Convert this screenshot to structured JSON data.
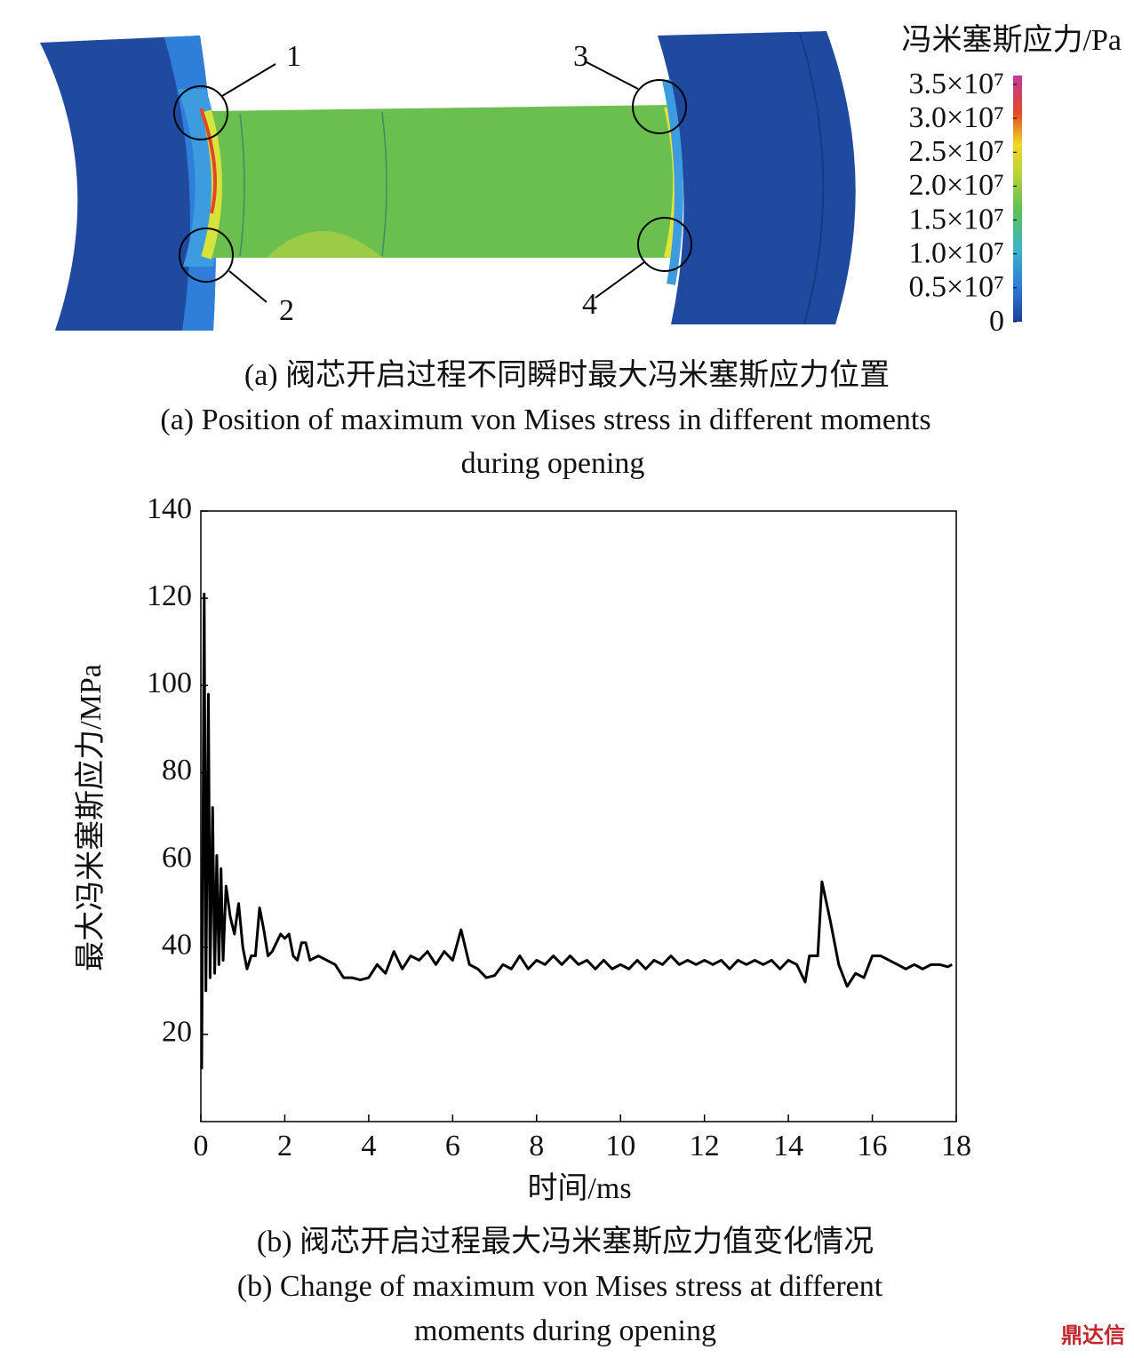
{
  "figure_a": {
    "legend_title": "冯米塞斯应力/Pa",
    "colorbar_ticks": [
      0,
      {
        "value": 5000000,
        "label": "0.5×10⁷"
      },
      {
        "value": 10000000,
        "label": "1.0×10⁷"
      },
      {
        "value": 15000000,
        "label": "1.5×10⁷"
      },
      {
        "value": 20000000,
        "label": "2.0×10⁷"
      },
      {
        "value": 25000000,
        "label": "2.5×10⁷"
      },
      {
        "value": 30000000,
        "label": "3.0×10⁷"
      },
      {
        "value": 35000000,
        "label": "3.5×10⁷"
      }
    ],
    "markers": [
      "1",
      "2",
      "3",
      "4"
    ],
    "caption_cn": "(a) 阀芯开启过程不同瞬时最大冯米塞斯应力位置",
    "caption_en": [
      "(a) Position of maximum von Mises stress in different moments",
      "during opening"
    ]
  },
  "chart_data": {
    "type": "line",
    "x_label": "时间/ms",
    "y_label": "最大冯米塞斯应力/MPa",
    "xlim": [
      0,
      18
    ],
    "xticks": [
      0,
      2,
      4,
      6,
      8,
      10,
      12,
      14,
      16,
      18
    ],
    "ylim": [
      0,
      140
    ],
    "yticks": [
      20,
      40,
      60,
      80,
      100,
      120,
      140
    ],
    "x": [
      0.02,
      0.08,
      0.12,
      0.18,
      0.22,
      0.28,
      0.33,
      0.38,
      0.43,
      0.48,
      0.53,
      0.6,
      0.7,
      0.8,
      0.9,
      1.0,
      1.1,
      1.2,
      1.3,
      1.4,
      1.5,
      1.6,
      1.7,
      1.8,
      1.9,
      2.0,
      2.1,
      2.2,
      2.3,
      2.4,
      2.5,
      2.6,
      2.8,
      3.0,
      3.2,
      3.4,
      3.6,
      3.8,
      4.0,
      4.2,
      4.4,
      4.6,
      4.8,
      5.0,
      5.2,
      5.4,
      5.6,
      5.8,
      6.0,
      6.2,
      6.4,
      6.6,
      6.8,
      7.0,
      7.2,
      7.4,
      7.6,
      7.8,
      8.0,
      8.2,
      8.4,
      8.6,
      8.8,
      9.0,
      9.2,
      9.4,
      9.6,
      9.8,
      10.0,
      10.2,
      10.4,
      10.6,
      10.8,
      11.0,
      11.2,
      11.4,
      11.6,
      11.8,
      12.0,
      12.2,
      12.4,
      12.6,
      12.8,
      13.0,
      13.2,
      13.4,
      13.6,
      13.8,
      14.0,
      14.2,
      14.4,
      14.5,
      14.7,
      14.8,
      15.0,
      15.2,
      15.4,
      15.6,
      15.8,
      16.0,
      16.2,
      16.4,
      16.6,
      16.8,
      17.0,
      17.2,
      17.4,
      17.6,
      17.8,
      17.9
    ],
    "series": [
      {
        "color": "#000000",
        "values": [
          12,
          121,
          30,
          98,
          33,
          72,
          34,
          61,
          36,
          58,
          37,
          54,
          47,
          43,
          50,
          40,
          35,
          38,
          38,
          49,
          44,
          38,
          39,
          41,
          43,
          42,
          43,
          38,
          37,
          41,
          41,
          37,
          38,
          37,
          36,
          33,
          33,
          32.5,
          33,
          36,
          34,
          39,
          35,
          38,
          37,
          39,
          36,
          39,
          37,
          44,
          36,
          35,
          33,
          33.5,
          36,
          35,
          38,
          35,
          37,
          36,
          38,
          36,
          38,
          36,
          37,
          35,
          37,
          35,
          36,
          35,
          37,
          35,
          37,
          36,
          38,
          36,
          37,
          36,
          37,
          36,
          37,
          35,
          37,
          36,
          37,
          36,
          37,
          35,
          37,
          36,
          32,
          38,
          38,
          55,
          46,
          36,
          31,
          34,
          33,
          38,
          38,
          37,
          36,
          35,
          36,
          35,
          36,
          36,
          35.5,
          36
        ]
      }
    ],
    "caption_cn": "(b) 阀芯开启过程最大冯米塞斯应力值变化情况",
    "caption_en": [
      "(b) Change of maximum von Mises stress at different",
      "moments during opening"
    ]
  },
  "watermark": "鼎达信"
}
